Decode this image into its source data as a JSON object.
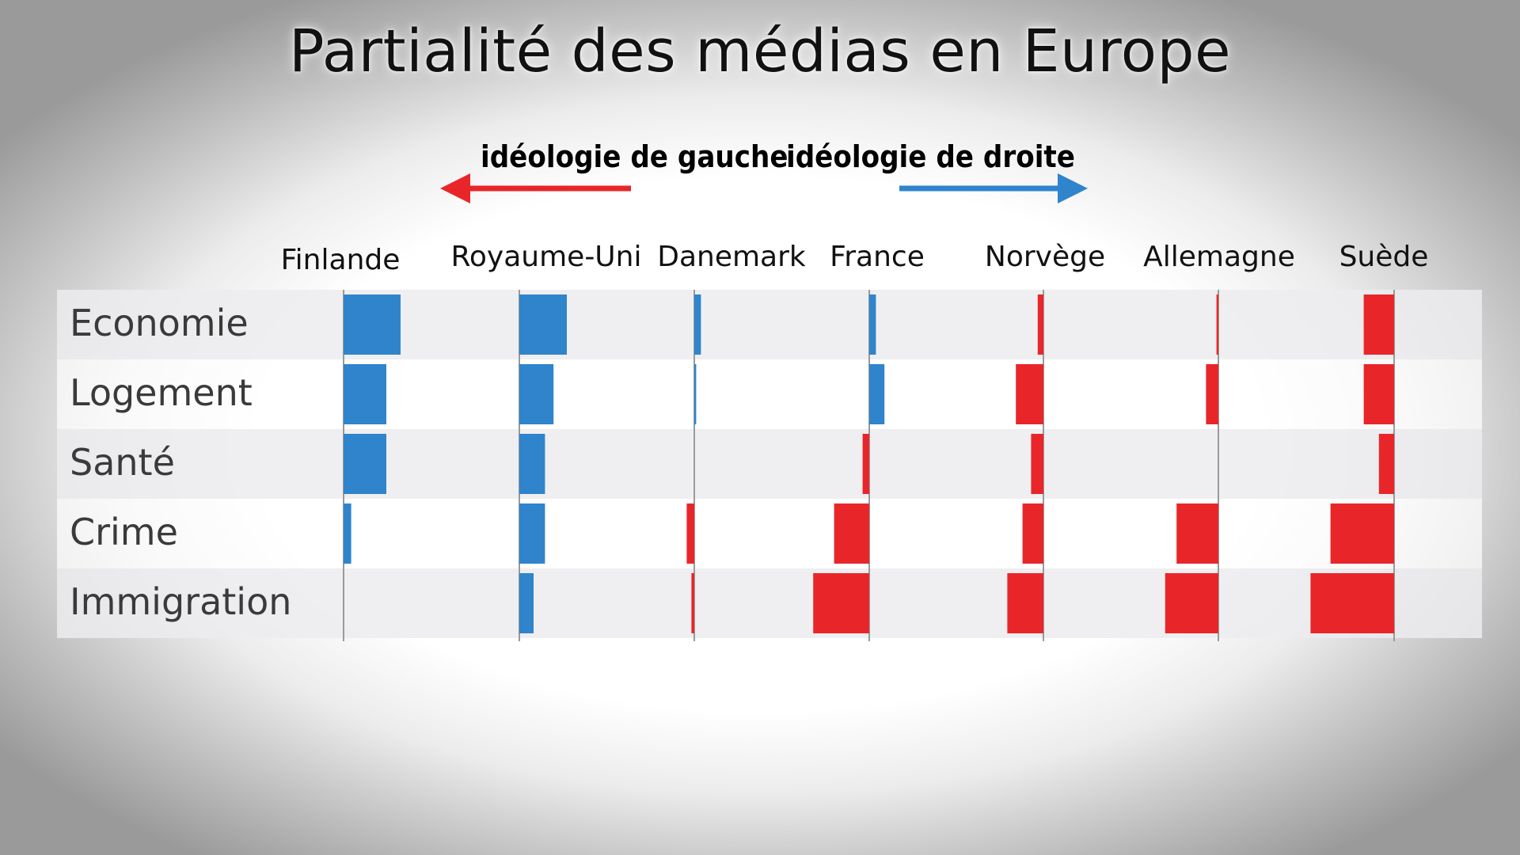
{
  "title": "Partialité des médias en Europe",
  "legend": {
    "left_label": "idéologie de gauche",
    "right_label": "idéologie de droite",
    "left_color": "#e8262a",
    "right_color": "#2f84cc"
  },
  "chart_data": {
    "type": "bar",
    "categories": [
      "Economie",
      "Logement",
      "Santé",
      "Crime",
      "Immigration"
    ],
    "series": [
      {
        "name": "Finlande",
        "values": [
          60,
          45,
          45,
          8,
          0
        ]
      },
      {
        "name": "Royaume-Uni",
        "values": [
          50,
          36,
          27,
          27,
          15
        ]
      },
      {
        "name": "Danemark",
        "values": [
          7,
          2,
          0,
          -8,
          -3
        ]
      },
      {
        "name": "France",
        "values": [
          7,
          16,
          -7,
          -37,
          -59
        ]
      },
      {
        "name": "Norvège",
        "values": [
          -6,
          -29,
          -13,
          -22,
          -38
        ]
      },
      {
        "name": "Allemagne",
        "values": [
          -2,
          -13,
          0,
          -44,
          -56
        ]
      },
      {
        "name": "Suède",
        "values": [
          -32,
          -32,
          -16,
          -67,
          -88
        ]
      }
    ],
    "colors": {
      "positive": "#2f84cc",
      "negative": "#e8262a"
    },
    "grid": false
  }
}
